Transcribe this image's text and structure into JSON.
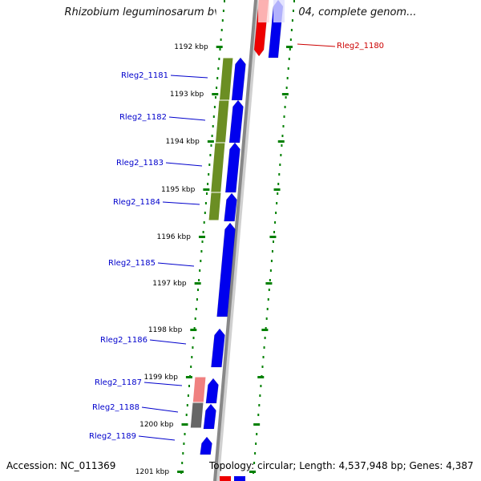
{
  "title": "Rhizobium leguminosarum bv. trifolii WSM2304, complete genom...",
  "footer": {
    "accession": "Accession: NC_011369",
    "topology": "Topology: circular",
    "length": "Length: 4,537,948 bp",
    "genes": "Genes: 4,387"
  },
  "colors": {
    "gene_label": "#0000cc",
    "highlight_label": "#cc0000",
    "tick": "#008000",
    "forward_gene": "#0000ee",
    "reverse_gene": "#ee0000",
    "feature_green": "#6b8e23",
    "feature_pink": "#f08080",
    "feature_gray": "#666666",
    "backbone": "#888888"
  },
  "ruler": [
    {
      "label": "1192 kbp"
    },
    {
      "label": "1193 kbp"
    },
    {
      "label": "1194 kbp"
    },
    {
      "label": "1195 kbp"
    },
    {
      "label": "1196 kbp"
    },
    {
      "label": "1197 kbp"
    },
    {
      "label": "1198 kbp"
    },
    {
      "label": "1199 kbp"
    },
    {
      "label": "1200 kbp"
    },
    {
      "label": "1201 kbp"
    }
  ],
  "genes": [
    {
      "label": "Rleg2_1180",
      "highlight": true
    },
    {
      "label": "Rleg2_1181"
    },
    {
      "label": "Rleg2_1182"
    },
    {
      "label": "Rleg2_1183"
    },
    {
      "label": "Rleg2_1184"
    },
    {
      "label": "Rleg2_1185"
    },
    {
      "label": "Rleg2_1186"
    },
    {
      "label": "Rleg2_1187"
    },
    {
      "label": "Rleg2_1188"
    },
    {
      "label": "Rleg2_1189"
    }
  ]
}
